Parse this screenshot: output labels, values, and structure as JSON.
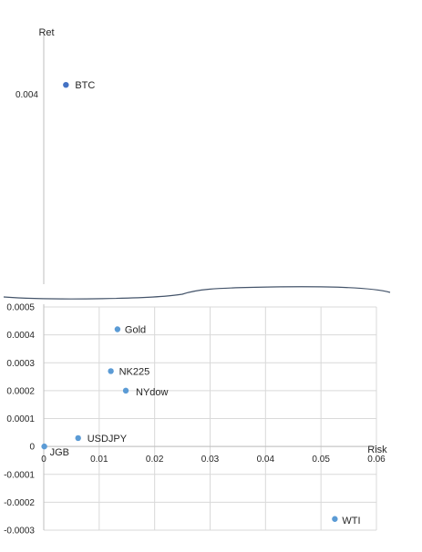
{
  "chart_data": {
    "type": "scatter",
    "broken_axis": true,
    "xlabel": "Risk",
    "ylabel": "Ret",
    "x_ticks": [
      "0",
      "0.01",
      "0.02",
      "0.03",
      "0.04",
      "0.05",
      "0.06"
    ],
    "xlim": [
      0,
      0.06
    ],
    "ylim_lower": [
      -0.0003,
      0.0005
    ],
    "y_ticks_lower": [
      "0.0005",
      "0.0004",
      "0.0003",
      "0.0002",
      "0.0001",
      "0",
      "-0.0001",
      "-0.0002",
      "-0.0003"
    ],
    "y_ticks_upper": [
      "0.004"
    ],
    "grid": true,
    "marker_color": "#5B9BD5",
    "highlight_color": "#4472C4",
    "points": [
      {
        "label": "BTC",
        "x": 0.004,
        "y": 0.0043
      },
      {
        "label": "Gold",
        "x": 0.0133,
        "y": 0.00042
      },
      {
        "label": "NK225",
        "x": 0.0121,
        "y": 0.00027
      },
      {
        "label": "NYdow",
        "x": 0.0148,
        "y": 0.0002
      },
      {
        "label": "USDJPY",
        "x": 0.0062,
        "y": 3e-05
      },
      {
        "label": "JGB",
        "x": 0.0001,
        "y": 0.0
      },
      {
        "label": "WTI",
        "x": 0.0525,
        "y": -0.00026
      }
    ]
  }
}
